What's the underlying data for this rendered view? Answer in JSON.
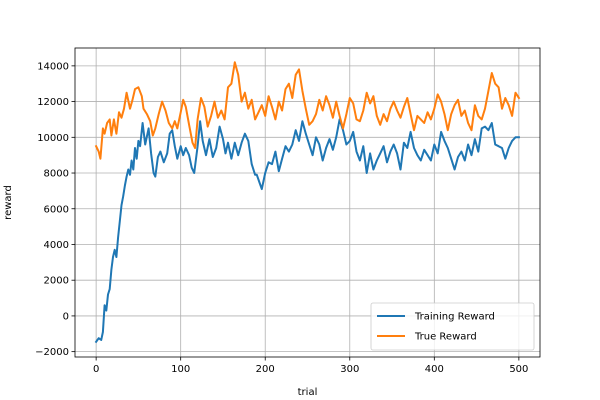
{
  "chart_data": {
    "type": "line",
    "xlabel": "trial",
    "ylabel": "reward",
    "xlim": [
      -25,
      525
    ],
    "ylim": [
      -2300,
      15000
    ],
    "xticks": [
      0,
      100,
      200,
      300,
      400,
      500
    ],
    "yticks": [
      -2000,
      0,
      2000,
      4000,
      6000,
      8000,
      10000,
      12000,
      14000
    ],
    "grid": true,
    "legend_position": "lower-right",
    "series": [
      {
        "name": "Training Reward",
        "color": "#1f77b4",
        "points": [
          [
            0,
            -1450
          ],
          [
            3,
            -1250
          ],
          [
            6,
            -1350
          ],
          [
            8,
            -900
          ],
          [
            10,
            600
          ],
          [
            12,
            300
          ],
          [
            14,
            1200
          ],
          [
            16,
            1500
          ],
          [
            18,
            2600
          ],
          [
            20,
            3300
          ],
          [
            22,
            3700
          ],
          [
            24,
            3300
          ],
          [
            26,
            4400
          ],
          [
            28,
            5300
          ],
          [
            30,
            6200
          ],
          [
            32,
            6700
          ],
          [
            34,
            7300
          ],
          [
            36,
            7800
          ],
          [
            38,
            8200
          ],
          [
            40,
            7900
          ],
          [
            42,
            8700
          ],
          [
            44,
            8200
          ],
          [
            46,
            9400
          ],
          [
            48,
            8800
          ],
          [
            50,
            9800
          ],
          [
            52,
            9500
          ],
          [
            55,
            10800
          ],
          [
            58,
            9600
          ],
          [
            62,
            10500
          ],
          [
            65,
            9100
          ],
          [
            68,
            8000
          ],
          [
            70,
            7800
          ],
          [
            73,
            8900
          ],
          [
            76,
            9200
          ],
          [
            80,
            8600
          ],
          [
            84,
            9100
          ],
          [
            87,
            10200
          ],
          [
            90,
            10400
          ],
          [
            93,
            9500
          ],
          [
            96,
            8800
          ],
          [
            100,
            9500
          ],
          [
            103,
            9000
          ],
          [
            106,
            9400
          ],
          [
            110,
            9000
          ],
          [
            113,
            8300
          ],
          [
            116,
            8000
          ],
          [
            120,
            9500
          ],
          [
            123,
            10900
          ],
          [
            126,
            9800
          ],
          [
            130,
            9000
          ],
          [
            134,
            9900
          ],
          [
            138,
            8900
          ],
          [
            142,
            9400
          ],
          [
            146,
            10600
          ],
          [
            150,
            9900
          ],
          [
            153,
            9100
          ],
          [
            156,
            9700
          ],
          [
            160,
            8800
          ],
          [
            164,
            9700
          ],
          [
            168,
            9000
          ],
          [
            172,
            9700
          ],
          [
            176,
            10200
          ],
          [
            180,
            9800
          ],
          [
            184,
            8500
          ],
          [
            188,
            7900
          ],
          [
            190,
            7900
          ],
          [
            193,
            7500
          ],
          [
            196,
            7100
          ],
          [
            200,
            8000
          ],
          [
            204,
            8600
          ],
          [
            208,
            8500
          ],
          [
            212,
            9200
          ],
          [
            216,
            8100
          ],
          [
            220,
            8800
          ],
          [
            224,
            9500
          ],
          [
            228,
            9200
          ],
          [
            232,
            9600
          ],
          [
            236,
            10400
          ],
          [
            240,
            9800
          ],
          [
            244,
            10900
          ],
          [
            248,
            10200
          ],
          [
            252,
            9600
          ],
          [
            256,
            9000
          ],
          [
            260,
            10000
          ],
          [
            264,
            9600
          ],
          [
            268,
            8700
          ],
          [
            272,
            9400
          ],
          [
            276,
            9900
          ],
          [
            280,
            9300
          ],
          [
            284,
            10000
          ],
          [
            288,
            11000
          ],
          [
            292,
            10400
          ],
          [
            296,
            9600
          ],
          [
            300,
            9800
          ],
          [
            304,
            10300
          ],
          [
            308,
            9200
          ],
          [
            312,
            8700
          ],
          [
            316,
            9500
          ],
          [
            320,
            8000
          ],
          [
            324,
            9100
          ],
          [
            328,
            8200
          ],
          [
            332,
            8700
          ],
          [
            336,
            9100
          ],
          [
            340,
            9500
          ],
          [
            344,
            8600
          ],
          [
            348,
            9200
          ],
          [
            352,
            9600
          ],
          [
            356,
            9100
          ],
          [
            360,
            8200
          ],
          [
            364,
            9700
          ],
          [
            368,
            9400
          ],
          [
            372,
            10300
          ],
          [
            376,
            9400
          ],
          [
            380,
            9000
          ],
          [
            384,
            8700
          ],
          [
            388,
            9300
          ],
          [
            392,
            9000
          ],
          [
            396,
            8700
          ],
          [
            400,
            9600
          ],
          [
            404,
            9100
          ],
          [
            408,
            10300
          ],
          [
            412,
            9800
          ],
          [
            416,
            9400
          ],
          [
            420,
            8800
          ],
          [
            424,
            8200
          ],
          [
            428,
            8900
          ],
          [
            432,
            9200
          ],
          [
            436,
            8700
          ],
          [
            440,
            9600
          ],
          [
            444,
            9000
          ],
          [
            448,
            9900
          ],
          [
            452,
            9200
          ],
          [
            456,
            10500
          ],
          [
            460,
            10600
          ],
          [
            464,
            10400
          ],
          [
            468,
            10800
          ],
          [
            472,
            9600
          ],
          [
            476,
            9500
          ],
          [
            480,
            9400
          ],
          [
            484,
            8800
          ],
          [
            488,
            9400
          ],
          [
            492,
            9800
          ],
          [
            496,
            10000
          ],
          [
            500,
            10000
          ]
        ]
      },
      {
        "name": "True Reward",
        "color": "#ff7f0e",
        "points": [
          [
            0,
            9500
          ],
          [
            3,
            9200
          ],
          [
            5,
            8800
          ],
          [
            8,
            10500
          ],
          [
            10,
            10200
          ],
          [
            13,
            10800
          ],
          [
            16,
            11000
          ],
          [
            18,
            10100
          ],
          [
            21,
            11000
          ],
          [
            24,
            10200
          ],
          [
            27,
            11400
          ],
          [
            30,
            11100
          ],
          [
            33,
            11600
          ],
          [
            36,
            12500
          ],
          [
            40,
            11600
          ],
          [
            43,
            12100
          ],
          [
            46,
            12700
          ],
          [
            50,
            12800
          ],
          [
            54,
            12300
          ],
          [
            56,
            11600
          ],
          [
            60,
            11300
          ],
          [
            64,
            10900
          ],
          [
            67,
            10100
          ],
          [
            70,
            10500
          ],
          [
            74,
            11300
          ],
          [
            78,
            12000
          ],
          [
            82,
            11500
          ],
          [
            86,
            10800
          ],
          [
            90,
            10500
          ],
          [
            93,
            10900
          ],
          [
            96,
            10500
          ],
          [
            100,
            11400
          ],
          [
            103,
            12100
          ],
          [
            106,
            11700
          ],
          [
            110,
            10700
          ],
          [
            114,
            9700
          ],
          [
            117,
            9400
          ],
          [
            120,
            11000
          ],
          [
            124,
            12200
          ],
          [
            128,
            11700
          ],
          [
            132,
            10600
          ],
          [
            136,
            11200
          ],
          [
            140,
            12000
          ],
          [
            144,
            11100
          ],
          [
            148,
            11500
          ],
          [
            152,
            11000
          ],
          [
            156,
            12800
          ],
          [
            160,
            13000
          ],
          [
            164,
            14200
          ],
          [
            168,
            13500
          ],
          [
            172,
            12000
          ],
          [
            176,
            12500
          ],
          [
            180,
            11600
          ],
          [
            184,
            12100
          ],
          [
            188,
            11000
          ],
          [
            192,
            11400
          ],
          [
            196,
            11800
          ],
          [
            200,
            11200
          ],
          [
            204,
            12300
          ],
          [
            208,
            11700
          ],
          [
            212,
            11000
          ],
          [
            216,
            12000
          ],
          [
            220,
            11500
          ],
          [
            224,
            12700
          ],
          [
            228,
            13000
          ],
          [
            232,
            12200
          ],
          [
            236,
            13500
          ],
          [
            240,
            13800
          ],
          [
            244,
            12600
          ],
          [
            248,
            11600
          ],
          [
            252,
            10700
          ],
          [
            256,
            10900
          ],
          [
            260,
            11300
          ],
          [
            264,
            12100
          ],
          [
            268,
            11500
          ],
          [
            272,
            12300
          ],
          [
            276,
            11800
          ],
          [
            280,
            11100
          ],
          [
            284,
            12000
          ],
          [
            288,
            11200
          ],
          [
            292,
            10500
          ],
          [
            296,
            11300
          ],
          [
            300,
            12200
          ],
          [
            304,
            11900
          ],
          [
            308,
            11000
          ],
          [
            312,
            10900
          ],
          [
            316,
            11500
          ],
          [
            320,
            12500
          ],
          [
            324,
            11900
          ],
          [
            328,
            12300
          ],
          [
            332,
            11200
          ],
          [
            336,
            10700
          ],
          [
            340,
            11300
          ],
          [
            344,
            10900
          ],
          [
            348,
            11600
          ],
          [
            352,
            12000
          ],
          [
            356,
            11500
          ],
          [
            360,
            11100
          ],
          [
            364,
            11700
          ],
          [
            368,
            12200
          ],
          [
            372,
            11300
          ],
          [
            376,
            10400
          ],
          [
            380,
            11200
          ],
          [
            384,
            11000
          ],
          [
            388,
            10800
          ],
          [
            392,
            11400
          ],
          [
            396,
            11000
          ],
          [
            400,
            11600
          ],
          [
            404,
            12400
          ],
          [
            408,
            12000
          ],
          [
            412,
            11300
          ],
          [
            416,
            10400
          ],
          [
            420,
            11300
          ],
          [
            424,
            11800
          ],
          [
            428,
            12100
          ],
          [
            432,
            11200
          ],
          [
            436,
            11500
          ],
          [
            440,
            10800
          ],
          [
            444,
            10400
          ],
          [
            448,
            11800
          ],
          [
            452,
            11200
          ],
          [
            456,
            11000
          ],
          [
            460,
            11600
          ],
          [
            464,
            12600
          ],
          [
            468,
            13600
          ],
          [
            472,
            13000
          ],
          [
            476,
            12800
          ],
          [
            480,
            11600
          ],
          [
            484,
            12200
          ],
          [
            488,
            11800
          ],
          [
            492,
            11200
          ],
          [
            496,
            12500
          ],
          [
            500,
            12200
          ]
        ]
      }
    ]
  }
}
